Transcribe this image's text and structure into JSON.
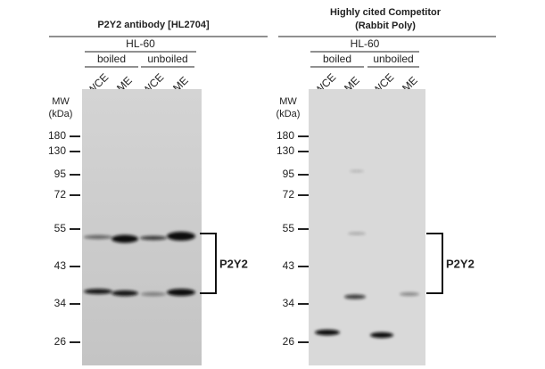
{
  "panels": [
    {
      "title": [
        "P2Y2 antibody [HL2704]"
      ],
      "cell_line": "HL-60",
      "conditions": [
        "boiled",
        "unboiled"
      ],
      "lanes": [
        "WCE",
        "ME",
        "WCE",
        "ME"
      ],
      "mw_label": [
        "MW",
        "(kDa)"
      ],
      "markers": [
        180,
        130,
        95,
        72,
        55,
        43,
        34,
        26
      ],
      "target": "P2Y2"
    },
    {
      "title": [
        "Highly cited Competitor",
        "(Rabbit Poly)"
      ],
      "cell_line": "HL-60",
      "conditions": [
        "boiled",
        "unboiled"
      ],
      "lanes": [
        "WCE",
        "ME",
        "WCE",
        "ME"
      ],
      "mw_label": [
        "MW",
        "(kDa)"
      ],
      "markers": [
        180,
        130,
        95,
        72,
        55,
        43,
        34,
        26
      ],
      "target": "P2Y2"
    }
  ]
}
